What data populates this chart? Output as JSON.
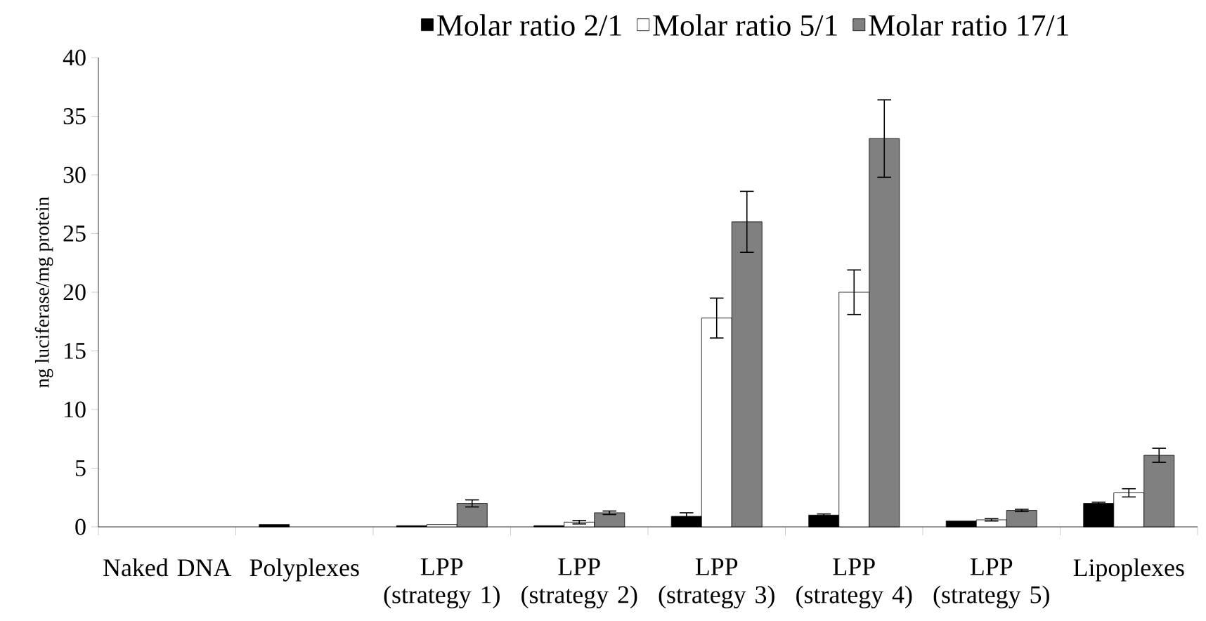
{
  "chart_data": {
    "type": "bar",
    "ylabel": "ng luciferase/mg protein",
    "categories": [
      "Naked DNA",
      "Polyplexes",
      "LPP (strategy 1)",
      "LPP (strategy 2)",
      "LPP (strategy 3)",
      "LPP (strategy 4)",
      "LPP (strategy 5)",
      "Lipoplexes"
    ],
    "series": [
      {
        "name": "Molar ratio 2/1",
        "color": "#000000",
        "values": [
          null,
          0.2,
          0.1,
          0.1,
          0.9,
          1.0,
          0.5,
          2.0
        ],
        "errors": [
          null,
          null,
          null,
          null,
          0.3,
          0.1,
          null,
          0.1
        ]
      },
      {
        "name": "Molar ratio 5/1",
        "color": "#ffffff",
        "values": [
          null,
          null,
          0.2,
          0.4,
          17.8,
          20.0,
          0.6,
          2.9
        ],
        "errors": [
          null,
          null,
          null,
          0.15,
          1.7,
          1.9,
          0.1,
          0.35
        ]
      },
      {
        "name": "Molar ratio 17/1",
        "color": "#808080",
        "values": [
          null,
          null,
          2.0,
          1.2,
          26.0,
          33.1,
          1.4,
          6.1
        ],
        "errors": [
          null,
          null,
          0.3,
          0.15,
          2.6,
          3.3,
          0.1,
          0.6
        ]
      }
    ],
    "ylim": [
      0,
      40
    ],
    "yticks": [
      0,
      5,
      10,
      15,
      20,
      25,
      30,
      35,
      40
    ],
    "grid": false,
    "legend": "top"
  }
}
